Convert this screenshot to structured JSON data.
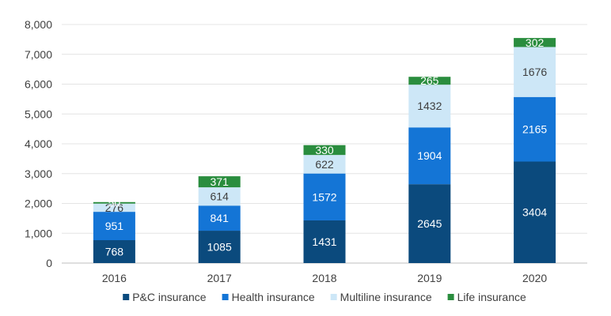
{
  "chart_data": {
    "type": "bar",
    "stacked": true,
    "categories": [
      "2016",
      "2017",
      "2018",
      "2019",
      "2020"
    ],
    "series": [
      {
        "name": "P&C insurance",
        "color": "#0b4a7d",
        "label_color": "#ffffff",
        "values": [
          768,
          1085,
          1431,
          2645,
          3404
        ]
      },
      {
        "name": "Health insurance",
        "color": "#1475d6",
        "label_color": "#ffffff",
        "values": [
          951,
          841,
          1572,
          1904,
          2165
        ]
      },
      {
        "name": "Multiline insurance",
        "color": "#cde7f7",
        "label_color": "#404040",
        "values": [
          276,
          614,
          622,
          1432,
          1676
        ]
      },
      {
        "name": "Life insurance",
        "color": "#2a8d3e",
        "label_color": "#ffffff",
        "values": [
          50,
          371,
          330,
          265,
          302
        ]
      }
    ],
    "data_labels": [
      [
        "768",
        "1085",
        "1431",
        "2645",
        "3404"
      ],
      [
        "951",
        "841",
        "1572",
        "1904",
        "2165"
      ],
      [
        "276",
        "614",
        "622",
        "1432",
        "1676"
      ],
      [
        "50",
        "371",
        "330",
        "265",
        "302"
      ]
    ],
    "y_ticks": [
      "0",
      "1,000",
      "2,000",
      "3,000",
      "4,000",
      "5,000",
      "6,000",
      "7,000",
      "8,000"
    ],
    "ylim": [
      0,
      8000
    ],
    "grid": true,
    "legend_position": "bottom",
    "title": "",
    "xlabel": "",
    "ylabel": ""
  }
}
